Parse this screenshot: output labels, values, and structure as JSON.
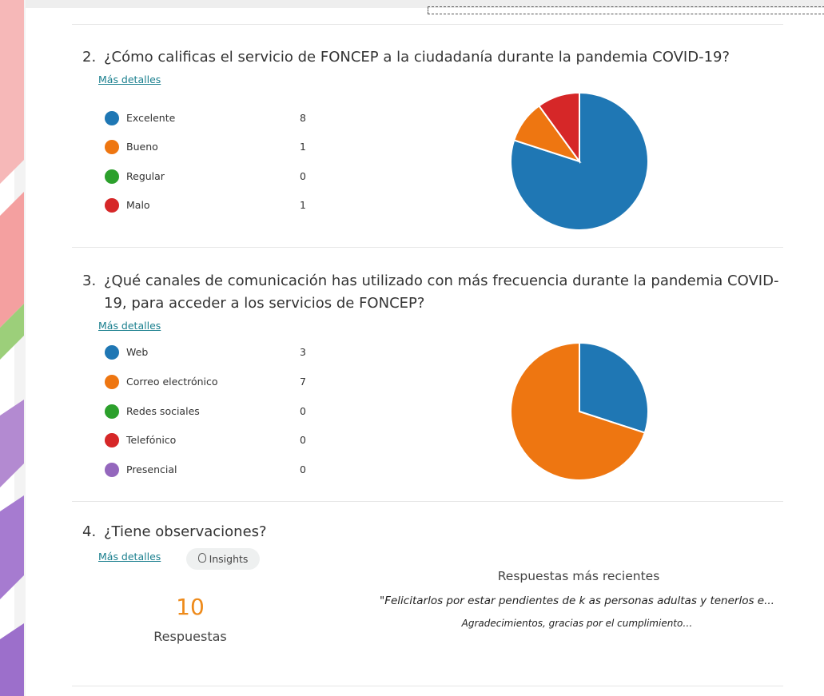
{
  "questions": [
    {
      "number": "2.",
      "title": "¿Cómo calificas el servicio de FONCEP a la ciudadanía durante la pandemia COVID-19?",
      "details": "Más detalles",
      "chart": {
        "type": "pie",
        "series": [
          {
            "name": "Excelente",
            "color": "#1f77b4",
            "value": 8
          },
          {
            "name": "Bueno",
            "color": "#ee7611",
            "value": 1
          },
          {
            "name": "Regular",
            "color": "#2ca02c",
            "value": 0
          },
          {
            "name": "Malo",
            "color": "#d62728",
            "value": 1
          }
        ]
      }
    },
    {
      "number": "3.",
      "title": "¿Qué canales de comunicación has utilizado con más frecuencia durante la pandemia COVID-19, para acceder a los servicios de FONCEP?",
      "details": "Más detalles",
      "chart": {
        "type": "pie",
        "series": [
          {
            "name": "Web",
            "color": "#1f77b4",
            "value": 3
          },
          {
            "name": "Correo electrónico",
            "color": "#ee7611",
            "value": 7
          },
          {
            "name": "Redes sociales",
            "color": "#2ca02c",
            "value": 0
          },
          {
            "name": "Telefónico",
            "color": "#d62728",
            "value": 0
          },
          {
            "name": "Presencial",
            "color": "#9467bd",
            "value": 0
          }
        ]
      }
    }
  ],
  "q4": {
    "number": "4.",
    "title": "¿Tiene observaciones?",
    "details": "Más detalles",
    "insights": "Insights",
    "count": 10,
    "count_label": "Respuestas",
    "recent_title": "Respuestas más recientes",
    "responses": [
      "\"Felicitarlos por estar pendientes de k as personas adultas y tenerlos e...",
      "Agradecimientos, gracias por el cumplimiento…"
    ]
  }
}
